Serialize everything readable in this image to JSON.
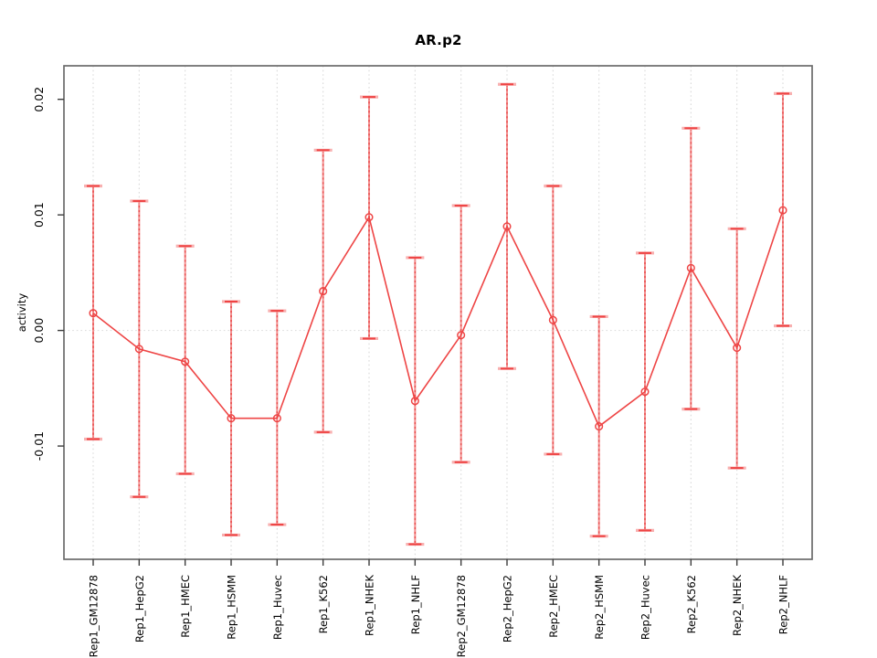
{
  "chart_data": {
    "type": "line",
    "title": "AR.p2",
    "xlabel": "",
    "ylabel": "activity",
    "legend_position": "none",
    "grid": "vertical-dotted",
    "zero_reference_line": true,
    "categories": [
      "Rep1_GM12878",
      "Rep1_HepG2",
      "Rep1_HMEC",
      "Rep1_HSMM",
      "Rep1_Huvec",
      "Rep1_K562",
      "Rep1_NHEK",
      "Rep1_NHLF",
      "Rep2_GM12878",
      "Rep2_HepG2",
      "Rep2_HMEC",
      "Rep2_HSMM",
      "Rep2_Huvec",
      "Rep2_K562",
      "Rep2_NHEK",
      "Rep2_NHLF"
    ],
    "series": [
      {
        "name": "activity",
        "marker": "open-circle",
        "values": [
          0.0015,
          -0.0016,
          -0.0027,
          -0.0076,
          -0.0076,
          0.0034,
          0.0098,
          -0.0061,
          -0.0004,
          0.009,
          0.0009,
          -0.0083,
          -0.0053,
          0.0054,
          -0.0015,
          0.0104
        ],
        "error_low": [
          -0.0094,
          -0.0144,
          -0.0124,
          -0.0177,
          -0.0168,
          -0.0088,
          -0.0007,
          -0.0185,
          -0.0114,
          -0.0033,
          -0.0107,
          -0.0178,
          -0.0173,
          -0.0068,
          -0.0119,
          0.0004
        ],
        "error_high": [
          0.0125,
          0.0112,
          0.0073,
          0.0025,
          0.0017,
          0.0156,
          0.0202,
          0.0063,
          0.0108,
          0.0213,
          0.0125,
          0.0012,
          0.0067,
          0.0175,
          0.0088,
          0.0205
        ]
      }
    ],
    "yticks": {
      "values": [
        -0.01,
        0.0,
        0.01,
        0.02
      ],
      "labels": [
        "-0.01",
        "0.00",
        "0.01",
        "0.02"
      ]
    },
    "ylim": [
      -0.0198,
      0.0229
    ],
    "colors": {
      "point": "#ee4545",
      "line": "#ee4545",
      "error_bar": "#f29090",
      "error_bar_dash": "#e83c3c",
      "error_cap_main": "#ee4343",
      "error_cap_light": "#f8b0b0",
      "grid": "#d9d9d9",
      "zero_line": "#dedede",
      "frame": "#6b6b6b",
      "tick": "#3c3c3c",
      "text": "#000000"
    }
  }
}
